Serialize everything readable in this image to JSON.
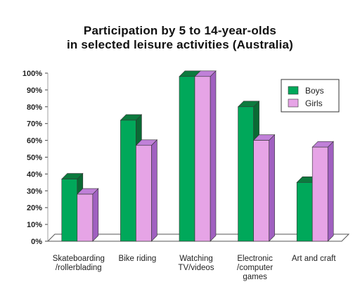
{
  "title": [
    "Participation by 5 to 14-year-olds",
    "in selected leisure activities (Australia)"
  ],
  "colors": {
    "boys": "#00a85a",
    "boys_side": "#0a6a34",
    "boys_top": "#0c7a3e",
    "girls": "#e6a4e6",
    "girls_side": "#a060c0",
    "girls_top": "#c080d8"
  },
  "chart_data": {
    "type": "bar",
    "categories": [
      [
        "Skateboarding",
        "/rollerblading"
      ],
      [
        "Bike riding"
      ],
      [
        "Watching",
        "TV/videos"
      ],
      [
        "Electronic",
        "/computer",
        "games"
      ],
      [
        "Art and craft"
      ]
    ],
    "series": [
      {
        "name": "Boys",
        "values": [
          37,
          72,
          98,
          80,
          35
        ]
      },
      {
        "name": "Girls",
        "values": [
          28,
          57,
          98,
          60,
          56
        ]
      }
    ],
    "ylim": [
      0,
      100
    ],
    "yticks": [
      "0%",
      "10%",
      "20%",
      "30%",
      "40%",
      "50%",
      "60%",
      "70%",
      "80%",
      "90%",
      "100%"
    ],
    "legend": "top-right",
    "grid": false
  }
}
